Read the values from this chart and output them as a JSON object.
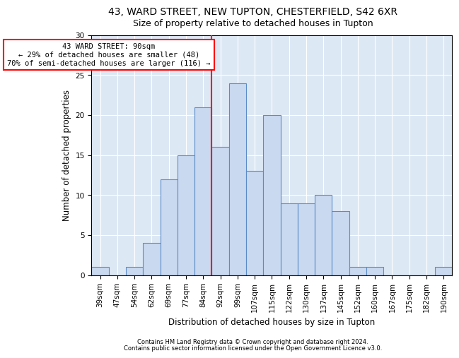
{
  "title1": "43, WARD STREET, NEW TUPTON, CHESTERFIELD, S42 6XR",
  "title2": "Size of property relative to detached houses in Tupton",
  "xlabel": "Distribution of detached houses by size in Tupton",
  "ylabel": "Number of detached properties",
  "categories": [
    "39sqm",
    "47sqm",
    "54sqm",
    "62sqm",
    "69sqm",
    "77sqm",
    "84sqm",
    "92sqm",
    "99sqm",
    "107sqm",
    "115sqm",
    "122sqm",
    "130sqm",
    "137sqm",
    "145sqm",
    "152sqm",
    "160sqm",
    "167sqm",
    "175sqm",
    "182sqm",
    "190sqm"
  ],
  "values": [
    1,
    0,
    1,
    4,
    12,
    15,
    21,
    16,
    24,
    13,
    20,
    9,
    9,
    10,
    8,
    1,
    1,
    0,
    0,
    0,
    1
  ],
  "bar_color": "#c9d9f0",
  "bar_edge_color": "#5b8cc8",
  "vline_x": 6.5,
  "vline_color": "red",
  "annotation_text": "43 WARD STREET: 90sqm\n← 29% of detached houses are smaller (48)\n70% of semi-detached houses are larger (116) →",
  "annotation_box_color": "white",
  "annotation_box_edge_color": "red",
  "ylim": [
    0,
    30
  ],
  "yticks": [
    0,
    5,
    10,
    15,
    20,
    25,
    30
  ],
  "footer1": "Contains HM Land Registry data © Crown copyright and database right 2024.",
  "footer2": "Contains public sector information licensed under the Open Government Licence v3.0.",
  "bg_color": "#dde8f5",
  "title_fontsize": 10,
  "subtitle_fontsize": 9,
  "tick_fontsize": 7.5
}
